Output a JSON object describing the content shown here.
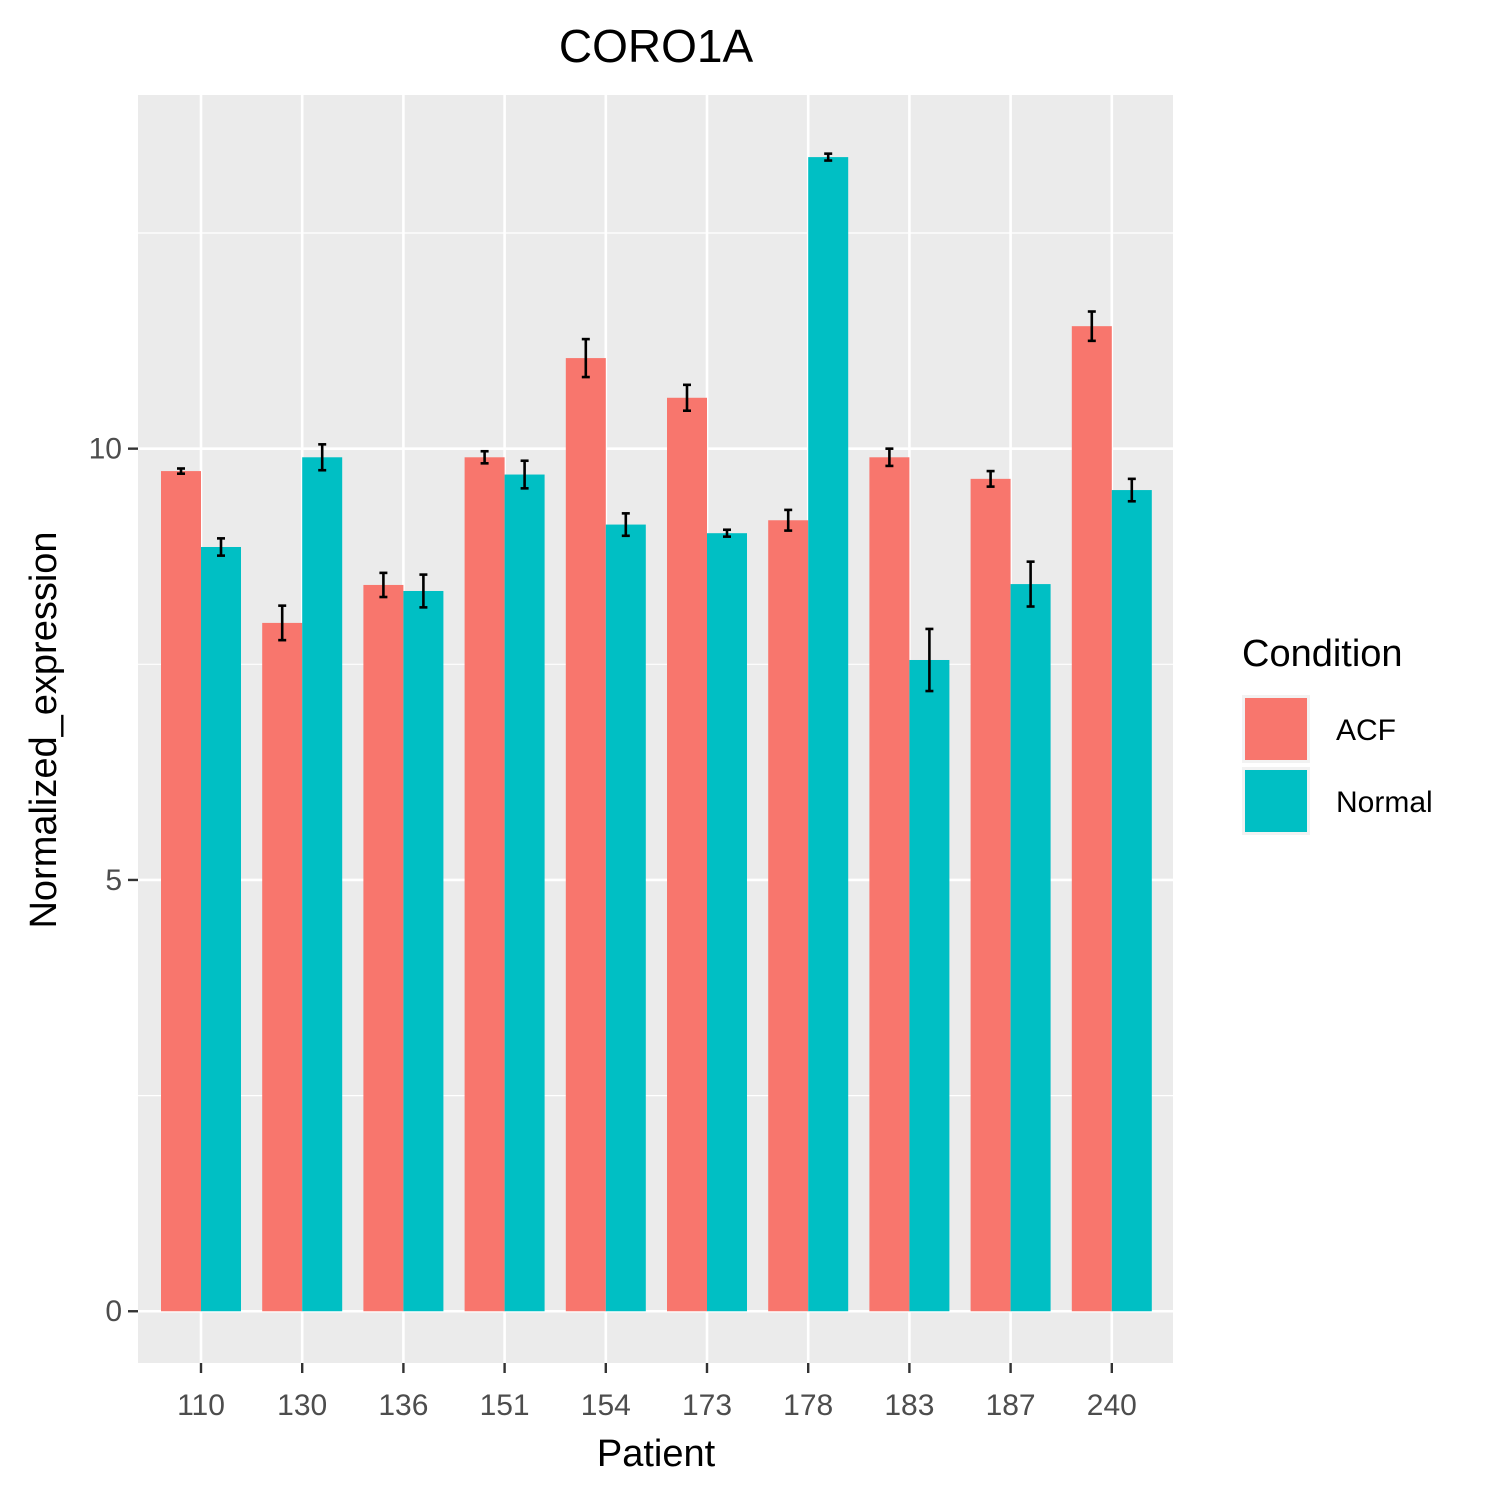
{
  "chart_data": {
    "type": "bar",
    "title": "CORO1A",
    "xlabel": "Patient",
    "ylabel": "Normalized_expression",
    "categories": [
      "110",
      "130",
      "136",
      "151",
      "154",
      "173",
      "178",
      "183",
      "187",
      "240"
    ],
    "series": [
      {
        "name": "ACF",
        "color": "#F8766D",
        "values": [
          9.74,
          7.98,
          8.42,
          9.9,
          11.05,
          10.59,
          9.17,
          9.9,
          9.65,
          11.42
        ],
        "error": [
          0.03,
          0.2,
          0.14,
          0.07,
          0.22,
          0.15,
          0.12,
          0.1,
          0.09,
          0.17
        ]
      },
      {
        "name": "Normal",
        "color": "#00BFC4",
        "values": [
          8.86,
          9.9,
          8.35,
          9.7,
          9.12,
          9.02,
          13.38,
          7.55,
          8.43,
          9.52
        ],
        "error": [
          0.1,
          0.15,
          0.19,
          0.16,
          0.13,
          0.04,
          0.04,
          0.36,
          0.26,
          0.13
        ]
      }
    ],
    "ylim": [
      -0.6,
      14.1
    ],
    "yticks": [
      0,
      5,
      10
    ],
    "grid": true,
    "legend_title": "Condition",
    "legend_position": "right"
  }
}
